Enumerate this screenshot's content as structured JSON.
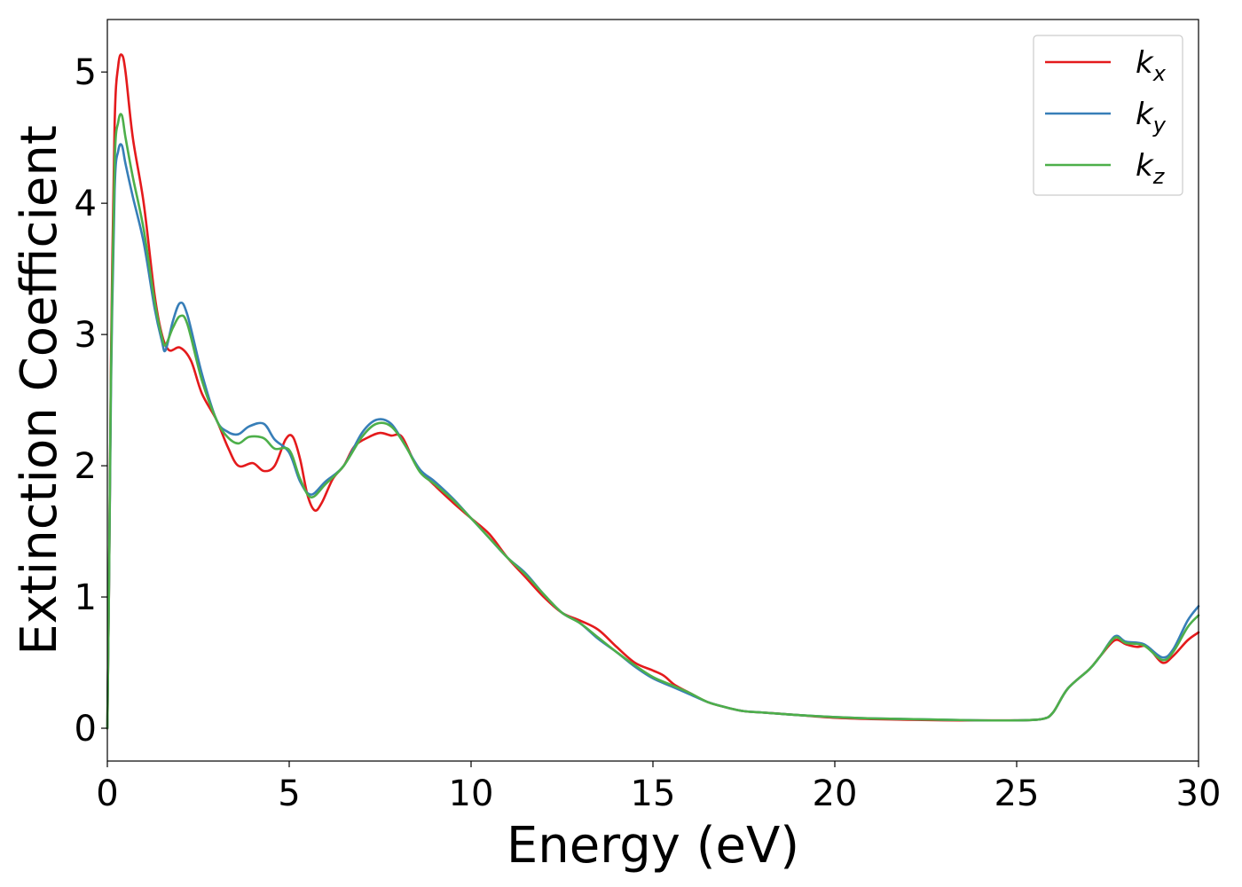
{
  "chart_data": {
    "type": "line",
    "xlabel": "Energy (eV)",
    "ylabel": "Extinction Coefficient",
    "xlim": [
      0,
      30
    ],
    "ylim": [
      -0.25,
      5.4
    ],
    "xticks": [
      0,
      5,
      10,
      15,
      20,
      25,
      30
    ],
    "yticks": [
      0,
      1,
      2,
      3,
      4,
      5
    ],
    "grid": false,
    "legend_position": "top-right",
    "series": [
      {
        "name": "k_x",
        "label_main": "k",
        "label_sub": "x",
        "color": "#e41a1c",
        "points": [
          [
            0,
            0
          ],
          [
            0.05,
            1.2
          ],
          [
            0.1,
            2.8
          ],
          [
            0.2,
            4.6
          ],
          [
            0.3,
            5.05
          ],
          [
            0.4,
            5.13
          ],
          [
            0.5,
            5.0
          ],
          [
            0.7,
            4.5
          ],
          [
            1.0,
            4.0
          ],
          [
            1.3,
            3.3
          ],
          [
            1.5,
            3.0
          ],
          [
            1.7,
            2.88
          ],
          [
            2.0,
            2.9
          ],
          [
            2.3,
            2.8
          ],
          [
            2.6,
            2.55
          ],
          [
            3.0,
            2.35
          ],
          [
            3.3,
            2.15
          ],
          [
            3.6,
            2.0
          ],
          [
            4.0,
            2.02
          ],
          [
            4.3,
            1.96
          ],
          [
            4.6,
            2.0
          ],
          [
            4.9,
            2.2
          ],
          [
            5.1,
            2.22
          ],
          [
            5.3,
            2.05
          ],
          [
            5.5,
            1.78
          ],
          [
            5.7,
            1.66
          ],
          [
            5.9,
            1.72
          ],
          [
            6.2,
            1.9
          ],
          [
            6.5,
            2.0
          ],
          [
            6.8,
            2.15
          ],
          [
            7.2,
            2.22
          ],
          [
            7.5,
            2.25
          ],
          [
            7.8,
            2.23
          ],
          [
            8.1,
            2.22
          ],
          [
            8.5,
            2.0
          ],
          [
            9.0,
            1.85
          ],
          [
            9.5,
            1.72
          ],
          [
            10.0,
            1.6
          ],
          [
            10.5,
            1.48
          ],
          [
            11.0,
            1.3
          ],
          [
            11.5,
            1.15
          ],
          [
            12.0,
            1.0
          ],
          [
            12.5,
            0.88
          ],
          [
            13.0,
            0.82
          ],
          [
            13.5,
            0.75
          ],
          [
            14.0,
            0.62
          ],
          [
            14.5,
            0.5
          ],
          [
            15.0,
            0.44
          ],
          [
            15.3,
            0.4
          ],
          [
            15.6,
            0.33
          ],
          [
            16.0,
            0.27
          ],
          [
            16.5,
            0.2
          ],
          [
            17.0,
            0.16
          ],
          [
            17.5,
            0.13
          ],
          [
            18.0,
            0.12
          ],
          [
            18.5,
            0.11
          ],
          [
            19.0,
            0.1
          ],
          [
            20.0,
            0.08
          ],
          [
            21.0,
            0.07
          ],
          [
            22.0,
            0.065
          ],
          [
            23.0,
            0.06
          ],
          [
            24.0,
            0.06
          ],
          [
            25.0,
            0.06
          ],
          [
            25.7,
            0.07
          ],
          [
            26.0,
            0.12
          ],
          [
            26.4,
            0.3
          ],
          [
            27.0,
            0.45
          ],
          [
            27.3,
            0.55
          ],
          [
            27.7,
            0.67
          ],
          [
            28.0,
            0.64
          ],
          [
            28.3,
            0.62
          ],
          [
            28.6,
            0.62
          ],
          [
            29.0,
            0.5
          ],
          [
            29.3,
            0.55
          ],
          [
            29.7,
            0.67
          ],
          [
            30.0,
            0.73
          ]
        ]
      },
      {
        "name": "k_y",
        "label_main": "k",
        "label_sub": "y",
        "color": "#377eb8",
        "points": [
          [
            0,
            0
          ],
          [
            0.05,
            1.2
          ],
          [
            0.1,
            2.6
          ],
          [
            0.2,
            4.1
          ],
          [
            0.3,
            4.4
          ],
          [
            0.4,
            4.44
          ],
          [
            0.5,
            4.3
          ],
          [
            0.7,
            4.05
          ],
          [
            1.0,
            3.7
          ],
          [
            1.3,
            3.2
          ],
          [
            1.5,
            2.95
          ],
          [
            1.6,
            2.88
          ],
          [
            1.8,
            3.1
          ],
          [
            2.0,
            3.24
          ],
          [
            2.2,
            3.15
          ],
          [
            2.6,
            2.7
          ],
          [
            3.0,
            2.35
          ],
          [
            3.3,
            2.26
          ],
          [
            3.6,
            2.24
          ],
          [
            3.9,
            2.3
          ],
          [
            4.3,
            2.32
          ],
          [
            4.6,
            2.2
          ],
          [
            5.0,
            2.1
          ],
          [
            5.3,
            1.88
          ],
          [
            5.6,
            1.78
          ],
          [
            6.0,
            1.88
          ],
          [
            6.5,
            2.0
          ],
          [
            7.0,
            2.25
          ],
          [
            7.4,
            2.35
          ],
          [
            7.8,
            2.32
          ],
          [
            8.2,
            2.15
          ],
          [
            8.6,
            1.97
          ],
          [
            9.0,
            1.88
          ],
          [
            9.5,
            1.75
          ],
          [
            10.0,
            1.6
          ],
          [
            10.5,
            1.45
          ],
          [
            11.0,
            1.3
          ],
          [
            11.5,
            1.18
          ],
          [
            12.0,
            1.02
          ],
          [
            12.5,
            0.88
          ],
          [
            13.0,
            0.8
          ],
          [
            13.5,
            0.68
          ],
          [
            14.0,
            0.58
          ],
          [
            14.5,
            0.47
          ],
          [
            15.0,
            0.38
          ],
          [
            15.5,
            0.32
          ],
          [
            16.0,
            0.26
          ],
          [
            16.5,
            0.2
          ],
          [
            17.0,
            0.16
          ],
          [
            17.5,
            0.13
          ],
          [
            18.0,
            0.12
          ],
          [
            19.0,
            0.1
          ],
          [
            20.0,
            0.085
          ],
          [
            21.0,
            0.075
          ],
          [
            22.0,
            0.07
          ],
          [
            23.0,
            0.065
          ],
          [
            24.0,
            0.06
          ],
          [
            25.0,
            0.06
          ],
          [
            25.7,
            0.07
          ],
          [
            26.0,
            0.12
          ],
          [
            26.4,
            0.3
          ],
          [
            27.0,
            0.45
          ],
          [
            27.3,
            0.55
          ],
          [
            27.7,
            0.7
          ],
          [
            28.0,
            0.66
          ],
          [
            28.5,
            0.64
          ],
          [
            29.0,
            0.54
          ],
          [
            29.3,
            0.6
          ],
          [
            29.7,
            0.82
          ],
          [
            30.0,
            0.93
          ]
        ]
      },
      {
        "name": "k_z",
        "label_main": "k",
        "label_sub": "z",
        "color": "#4daf4a",
        "points": [
          [
            0,
            0
          ],
          [
            0.05,
            1.2
          ],
          [
            0.1,
            2.7
          ],
          [
            0.2,
            4.3
          ],
          [
            0.3,
            4.62
          ],
          [
            0.4,
            4.67
          ],
          [
            0.5,
            4.5
          ],
          [
            0.7,
            4.2
          ],
          [
            1.0,
            3.8
          ],
          [
            1.3,
            3.25
          ],
          [
            1.5,
            2.98
          ],
          [
            1.6,
            2.92
          ],
          [
            1.8,
            3.05
          ],
          [
            2.0,
            3.14
          ],
          [
            2.2,
            3.08
          ],
          [
            2.6,
            2.65
          ],
          [
            3.0,
            2.35
          ],
          [
            3.3,
            2.22
          ],
          [
            3.6,
            2.17
          ],
          [
            3.9,
            2.22
          ],
          [
            4.3,
            2.21
          ],
          [
            4.6,
            2.13
          ],
          [
            5.0,
            2.12
          ],
          [
            5.3,
            1.9
          ],
          [
            5.6,
            1.76
          ],
          [
            6.0,
            1.86
          ],
          [
            6.5,
            2.0
          ],
          [
            7.0,
            2.22
          ],
          [
            7.4,
            2.32
          ],
          [
            7.8,
            2.3
          ],
          [
            8.2,
            2.15
          ],
          [
            8.6,
            1.95
          ],
          [
            9.0,
            1.86
          ],
          [
            9.5,
            1.74
          ],
          [
            10.0,
            1.6
          ],
          [
            10.5,
            1.45
          ],
          [
            11.0,
            1.3
          ],
          [
            11.5,
            1.17
          ],
          [
            12.0,
            1.02
          ],
          [
            12.5,
            0.88
          ],
          [
            13.0,
            0.8
          ],
          [
            13.5,
            0.69
          ],
          [
            14.0,
            0.58
          ],
          [
            14.5,
            0.48
          ],
          [
            15.0,
            0.39
          ],
          [
            15.5,
            0.33
          ],
          [
            16.0,
            0.27
          ],
          [
            16.5,
            0.2
          ],
          [
            17.0,
            0.16
          ],
          [
            17.5,
            0.13
          ],
          [
            18.0,
            0.12
          ],
          [
            19.0,
            0.1
          ],
          [
            20.0,
            0.085
          ],
          [
            21.0,
            0.075
          ],
          [
            22.0,
            0.07
          ],
          [
            23.0,
            0.065
          ],
          [
            24.0,
            0.06
          ],
          [
            25.0,
            0.06
          ],
          [
            25.7,
            0.07
          ],
          [
            26.0,
            0.12
          ],
          [
            26.4,
            0.3
          ],
          [
            27.0,
            0.45
          ],
          [
            27.3,
            0.55
          ],
          [
            27.7,
            0.69
          ],
          [
            28.0,
            0.65
          ],
          [
            28.5,
            0.63
          ],
          [
            29.0,
            0.52
          ],
          [
            29.3,
            0.58
          ],
          [
            29.7,
            0.77
          ],
          [
            30.0,
            0.86
          ]
        ]
      }
    ]
  }
}
